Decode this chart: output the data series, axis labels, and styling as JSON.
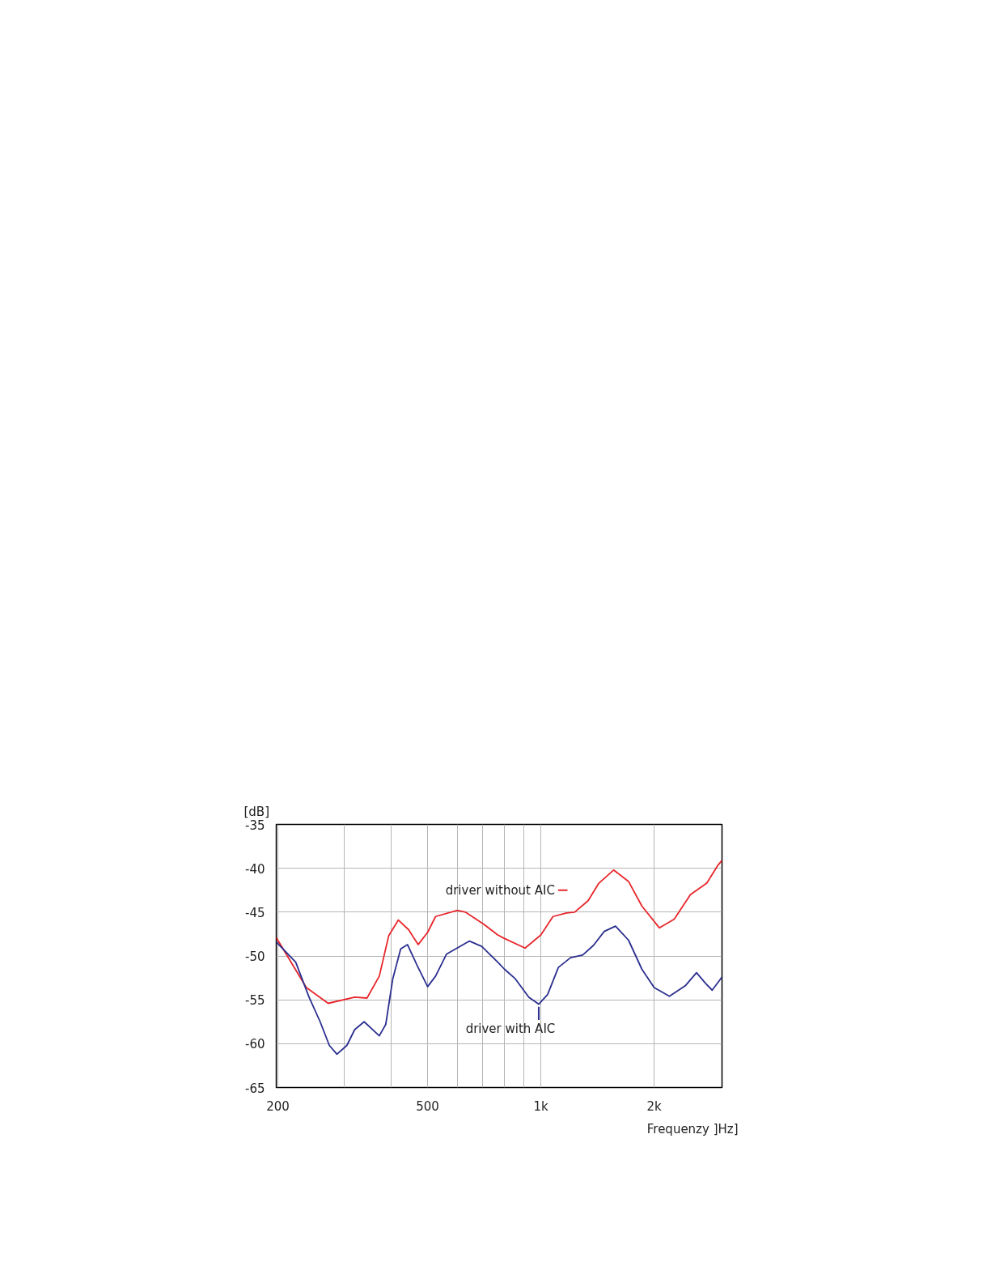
{
  "chart_data": {
    "type": "line",
    "xlabel": "Frequenzy ]Hz]",
    "ylabel": "[dB]",
    "log": "x",
    "xlim": [
      198,
      3030
    ],
    "ylim": [
      -65,
      -35
    ],
    "xticks": [
      {
        "value": 200,
        "label": "200"
      },
      {
        "value": 300,
        "label": null
      },
      {
        "value": 400,
        "label": null
      },
      {
        "value": 500,
        "label": "500"
      },
      {
        "value": 600,
        "label": null
      },
      {
        "value": 700,
        "label": null
      },
      {
        "value": 800,
        "label": null
      },
      {
        "value": 900,
        "label": null
      },
      {
        "value": 1000,
        "label": "1k"
      },
      {
        "value": 2000,
        "label": "2k"
      }
    ],
    "yticks": [
      -65,
      -60,
      -55,
      -50,
      -45,
      -40,
      -35
    ],
    "grid": true,
    "legend": "center",
    "line_style": "solid",
    "marker": "none",
    "series": [
      {
        "name": "driver without AIC",
        "color": "#e8262b",
        "x": [
          198,
          238,
          272,
          320,
          345,
          372,
          394,
          418,
          445,
          472,
          500,
          525,
          600,
          630,
          706,
          768,
          800,
          908,
          1000,
          1077,
          1170,
          1229,
          1335,
          1426,
          1561,
          1710,
          1855,
          2066,
          2262,
          2497,
          2760,
          2950,
          3030
        ],
        "values": [
          -47.9,
          -53.6,
          -55.4,
          -54.7,
          -54.8,
          -52.3,
          -47.7,
          -45.9,
          -47.0,
          -48.7,
          -47.3,
          -45.5,
          -44.8,
          -45.0,
          -46.4,
          -47.6,
          -48.0,
          -49.1,
          -47.6,
          -45.5,
          -45.1,
          -45.0,
          -43.7,
          -41.7,
          -40.2,
          -41.5,
          -44.3,
          -46.8,
          -45.8,
          -43.0,
          -41.7,
          -39.7,
          -39.1
        ]
      },
      {
        "name": "driver with AIC",
        "color": "#2b2f8f",
        "x": [
          198,
          223,
          242,
          259,
          274,
          287,
          305,
          320,
          339,
          372,
          387,
          404,
          424,
          442,
          468,
          500,
          525,
          561,
          646,
          696,
          768,
          800,
          855,
          929,
          987,
          1042,
          1113,
          1199,
          1291,
          1379,
          1474,
          1579,
          1710,
          1855,
          2000,
          2196,
          2420,
          2592,
          2737,
          2853,
          3030
        ],
        "values": [
          -48.4,
          -50.7,
          -54.7,
          -57.5,
          -60.2,
          -61.2,
          -60.2,
          -58.4,
          -57.5,
          -59.1,
          -57.8,
          -52.6,
          -49.2,
          -48.7,
          -51.0,
          -53.5,
          -52.3,
          -49.8,
          -48.3,
          -48.9,
          -50.7,
          -51.5,
          -52.6,
          -54.7,
          -55.5,
          -54.4,
          -51.3,
          -50.2,
          -49.9,
          -48.8,
          -47.2,
          -46.6,
          -48.2,
          -51.5,
          -53.6,
          -54.6,
          -53.4,
          -51.9,
          -53.1,
          -53.9,
          -52.4
        ]
      }
    ]
  }
}
